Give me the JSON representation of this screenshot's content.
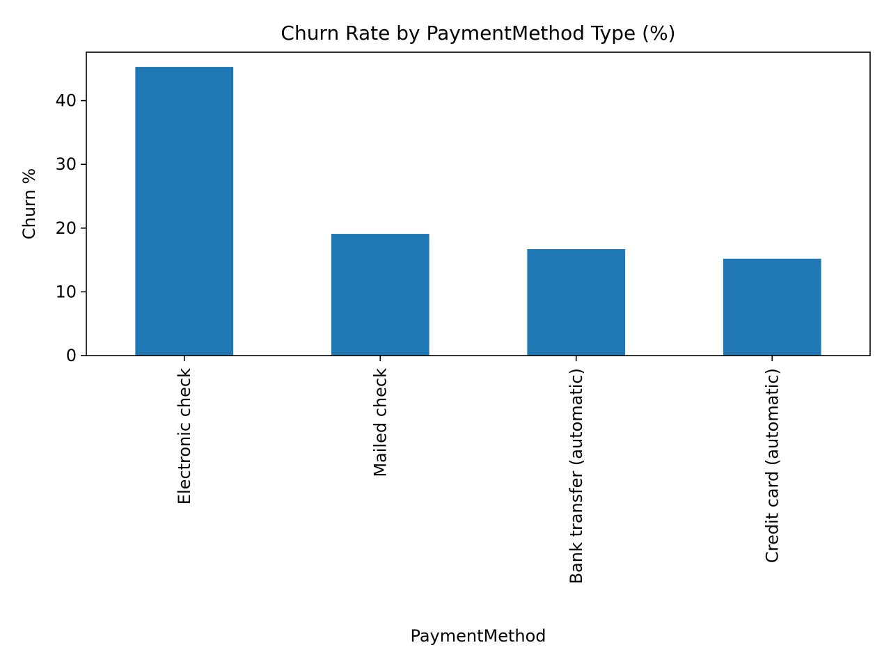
{
  "chart_data": {
    "type": "bar",
    "title": "Churn Rate by PaymentMethod Type (%)",
    "xlabel": "PaymentMethod",
    "ylabel": "Churn %",
    "categories": [
      "Electronic check",
      "Mailed check",
      "Bank transfer (automatic)",
      "Credit card (automatic)"
    ],
    "values": [
      45.3,
      19.1,
      16.7,
      15.2
    ],
    "ylim": [
      0,
      47.6
    ],
    "yticks": [
      0,
      10,
      20,
      30,
      40
    ],
    "bar_color": "#1f77b4",
    "grid": false,
    "legend": "none"
  }
}
